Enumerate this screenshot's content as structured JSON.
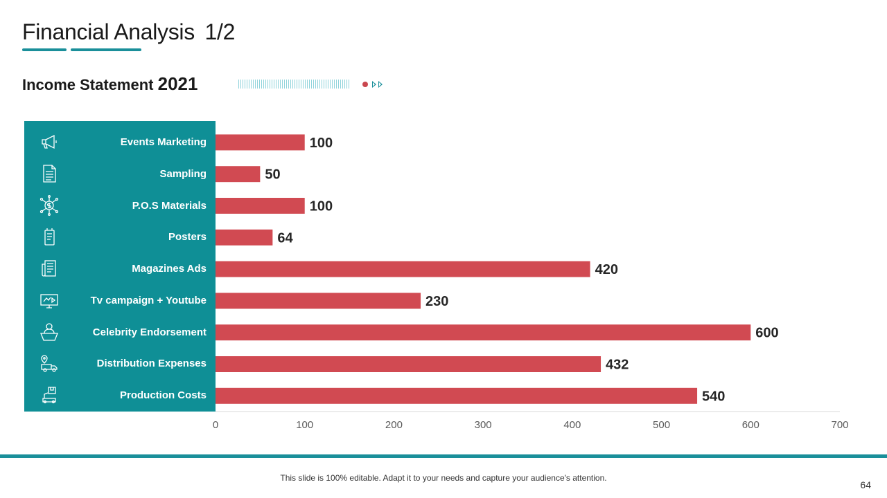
{
  "slide": {
    "title": "Financial Analysis",
    "title_number": "1/2",
    "subtitle": "Income Statement",
    "subtitle_year": "2021",
    "footer_text": "This slide is 100% editable. Adapt it to your needs and capture your audience's attention.",
    "page_number": "64"
  },
  "icons": [
    "megaphone-icon",
    "document-icon",
    "dollar-network-icon",
    "poster-icon",
    "newspaper-icon",
    "tv-monitor-icon",
    "person-podium-icon",
    "delivery-truck-icon",
    "production-box-icon"
  ],
  "colors": {
    "panel": "#0f8f96",
    "bar": "#d14a52",
    "accent": "#1a8f9a"
  },
  "chart_data": {
    "type": "bar",
    "orientation": "horizontal",
    "categories": [
      "Events Marketing",
      "Sampling",
      "P.O.S Materials",
      "Posters",
      "Magazines Ads",
      "Tv campaign + Youtube",
      "Celebrity Endorsement",
      "Distribution Expenses",
      "Production Costs"
    ],
    "values": [
      100,
      50,
      100,
      64,
      420,
      230,
      600,
      432,
      540
    ],
    "xlim": [
      0,
      700
    ],
    "xticks": [
      0,
      100,
      200,
      300,
      400,
      500,
      600,
      700
    ],
    "title": "Income Statement 2021",
    "xlabel": "",
    "ylabel": "",
    "grid": false
  }
}
